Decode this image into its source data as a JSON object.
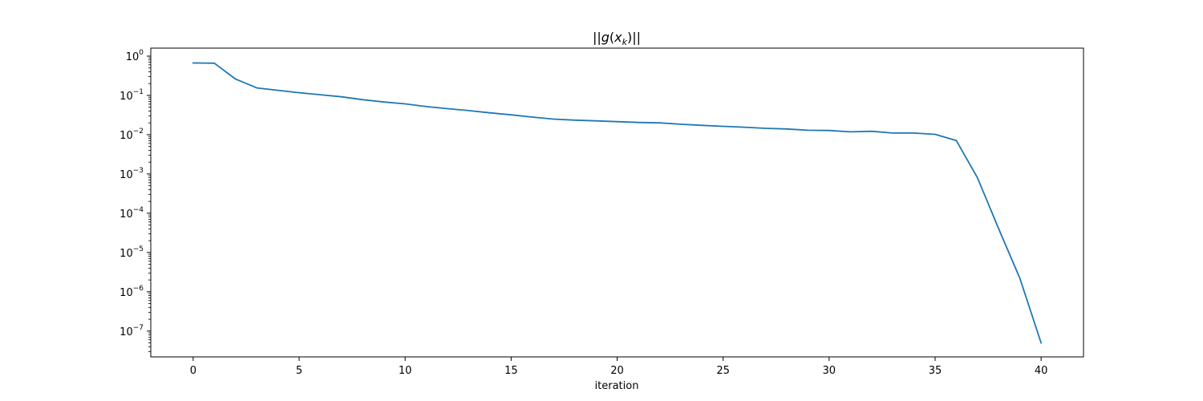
{
  "chart_data": {
    "type": "line",
    "title": "||g(x_k)||",
    "xlabel": "iteration",
    "ylabel": "",
    "yscale": "log",
    "grid": false,
    "xlim": [
      -2,
      42
    ],
    "ylim": [
      2.2e-08,
      1.6
    ],
    "xticks": [
      0,
      5,
      10,
      15,
      20,
      25,
      30,
      35,
      40
    ],
    "yticks": [
      {
        "value": 1,
        "base": "10",
        "exp": "0"
      },
      {
        "value": 0.1,
        "base": "10",
        "exp": "−1"
      },
      {
        "value": 0.01,
        "base": "10",
        "exp": "−2"
      },
      {
        "value": 0.001,
        "base": "10",
        "exp": "−3"
      },
      {
        "value": 0.0001,
        "base": "10",
        "exp": "−4"
      },
      {
        "value": 1e-05,
        "base": "10",
        "exp": "−5"
      },
      {
        "value": 1e-06,
        "base": "10",
        "exp": "−6"
      },
      {
        "value": 1e-07,
        "base": "10",
        "exp": "−7"
      }
    ],
    "colors": {
      "series": "#1f77b4",
      "axes": "#000000",
      "background": "#ffffff"
    },
    "series": [
      {
        "x": [
          0,
          1,
          2,
          3,
          4,
          5,
          6,
          7,
          8,
          9,
          10,
          11,
          12,
          13,
          14,
          15,
          16,
          17,
          18,
          19,
          20,
          21,
          22,
          23,
          24,
          25,
          26,
          27,
          28,
          29,
          30,
          31,
          32,
          33,
          34,
          35,
          36,
          37,
          38,
          39,
          40
        ],
        "values": [
          0.67,
          0.66,
          0.26,
          0.155,
          0.135,
          0.117,
          0.104,
          0.092,
          0.078,
          0.068,
          0.061,
          0.052,
          0.046,
          0.041,
          0.036,
          0.032,
          0.028,
          0.025,
          0.0235,
          0.0225,
          0.0215,
          0.0205,
          0.02,
          0.0185,
          0.0173,
          0.0163,
          0.0155,
          0.0145,
          0.014,
          0.013,
          0.0128,
          0.0118,
          0.0122,
          0.011,
          0.011,
          0.0102,
          0.0071,
          0.0008,
          4e-05,
          2.2e-06,
          5e-08
        ]
      }
    ]
  }
}
